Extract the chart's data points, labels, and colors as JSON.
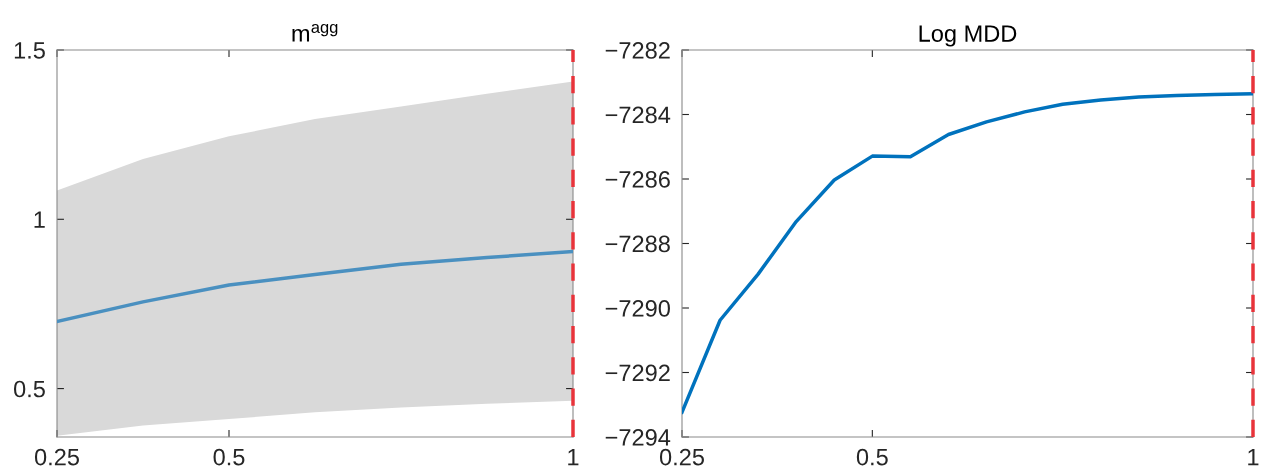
{
  "chart_data": [
    {
      "type": "line",
      "title": "m$^{agg}$",
      "x": [
        0.25,
        0.375,
        0.5,
        0.625,
        0.75,
        0.875,
        1.0
      ],
      "series": [
        {
          "color": "#4a90c0",
          "values": [
            0.698,
            0.756,
            0.806,
            0.837,
            0.867,
            0.887,
            0.905
          ],
          "lower": [
            0.361,
            0.391,
            0.41,
            0.43,
            0.444,
            0.455,
            0.464
          ],
          "upper": [
            1.085,
            1.178,
            1.245,
            1.296,
            1.333,
            1.371,
            1.407
          ]
        }
      ],
      "xlim": [
        0.25,
        1
      ],
      "xticks": [
        0.25,
        0.5,
        1
      ],
      "ylim": [
        0.357,
        1.5
      ],
      "yticks": [
        0.5,
        1,
        1.5
      ],
      "ref_lines": [
        {
          "axis": "x",
          "value": 1,
          "color": "#e8333a",
          "line_style": "dashed"
        }
      ]
    },
    {
      "type": "line",
      "title": "Log MDD",
      "x": [
        0.25,
        0.3,
        0.35,
        0.4,
        0.45,
        0.5,
        0.55,
        0.6,
        0.65,
        0.7,
        0.75,
        0.8,
        0.85,
        0.9,
        0.95,
        1.0
      ],
      "series": [
        {
          "color": "#0072bd",
          "values": [
            -7293.23,
            -7290.38,
            -7288.95,
            -7287.32,
            -7286.03,
            -7285.29,
            -7285.31,
            -7284.62,
            -7284.23,
            -7283.92,
            -7283.68,
            -7283.55,
            -7283.46,
            -7283.41,
            -7283.38,
            -7283.36
          ]
        }
      ],
      "xlim": [
        0.25,
        1
      ],
      "xticks": [
        0.25,
        0.5,
        1
      ],
      "ylim": [
        -7294,
        -7282
      ],
      "yticks": [
        {
          "value": -7294,
          "label": "−7294"
        },
        {
          "value": -7292,
          "label": "−7292"
        },
        {
          "value": -7290,
          "label": "−7290"
        },
        {
          "value": -7288,
          "label": "−7288"
        },
        {
          "value": -7286,
          "label": "−7286"
        },
        {
          "value": -7284,
          "label": "−7284"
        },
        {
          "value": -7282,
          "label": "−7282"
        }
      ],
      "ref_lines": [
        {
          "axis": "x",
          "value": 1,
          "color": "#e8333a",
          "line_style": "dashed"
        }
      ]
    }
  ]
}
